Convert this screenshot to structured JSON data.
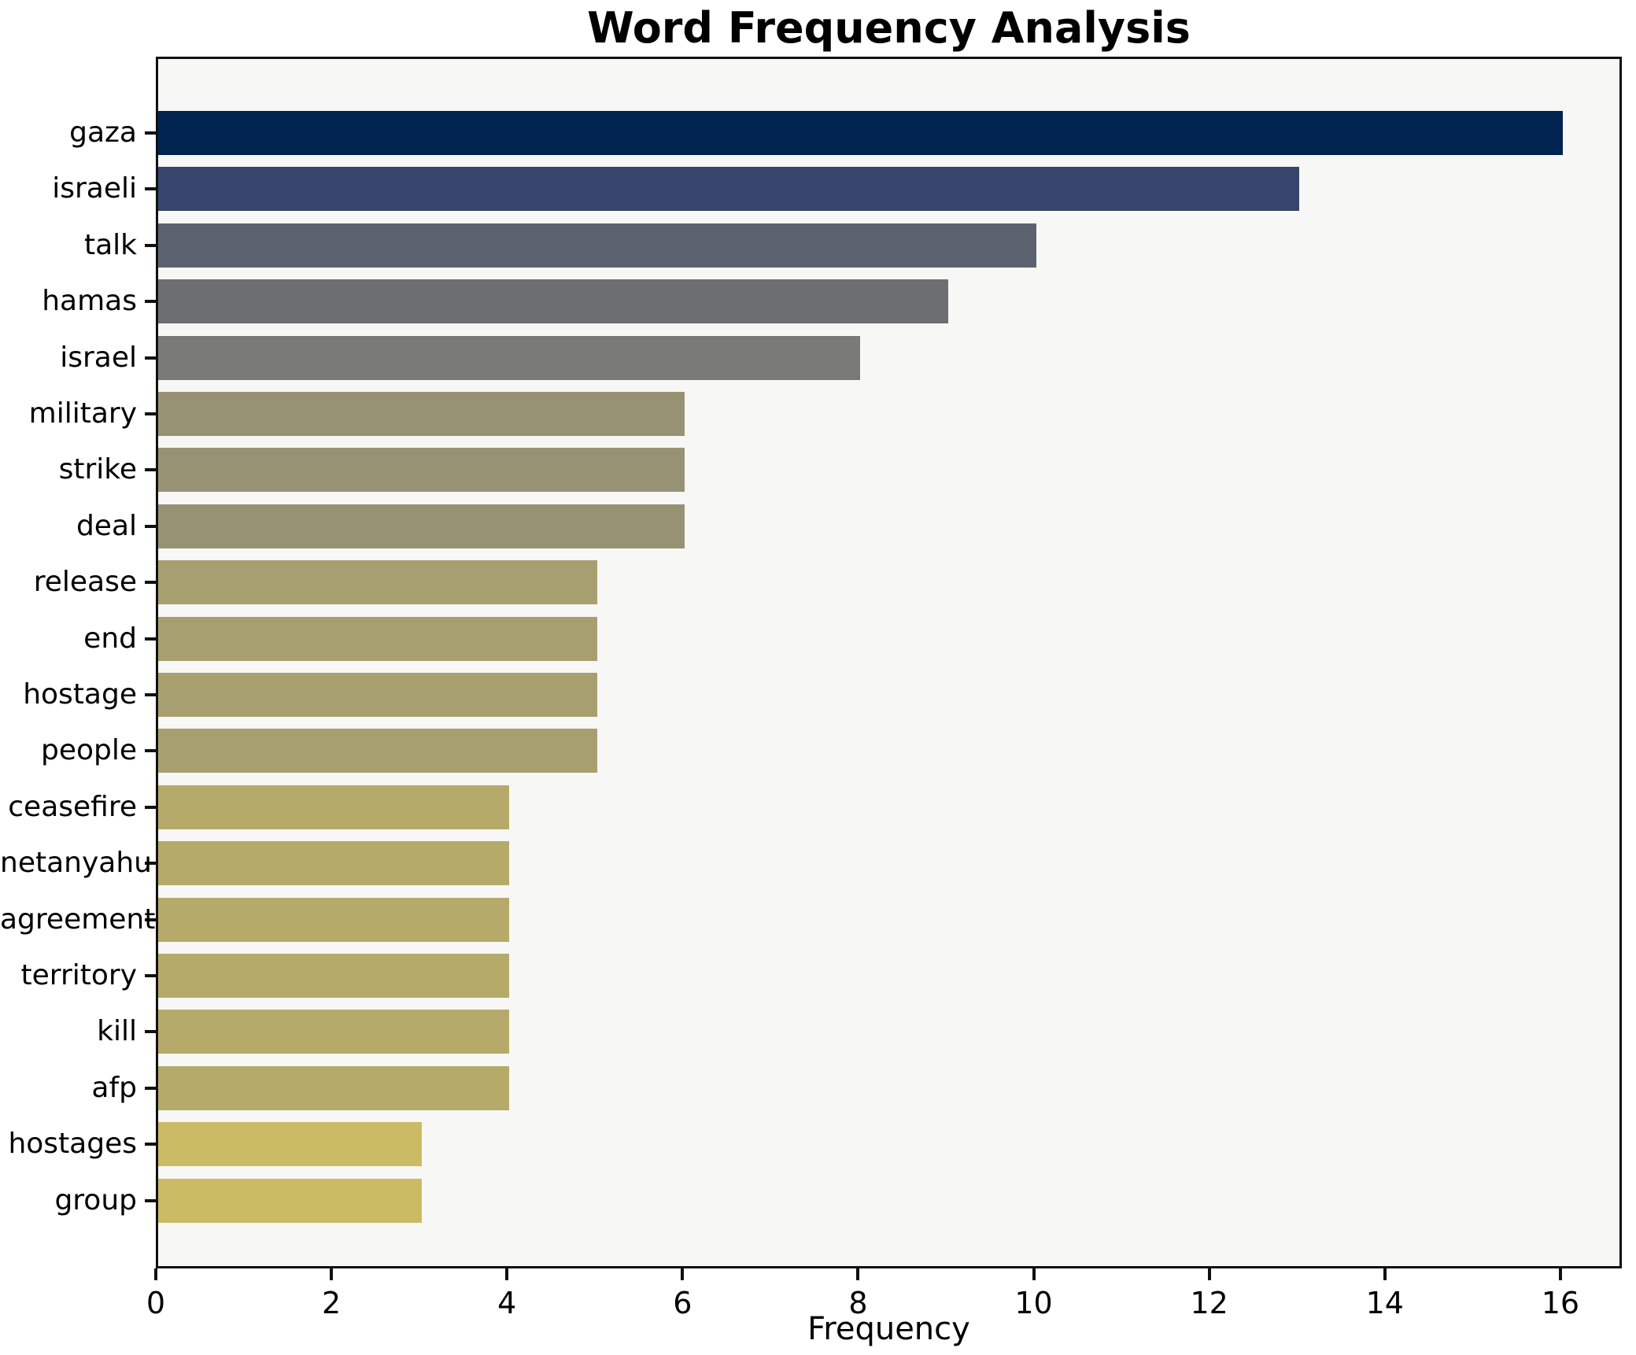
{
  "title": "Word Frequency Analysis",
  "xlabel": "Frequency",
  "chart_data": {
    "type": "bar",
    "orientation": "horizontal",
    "title": "Word Frequency Analysis",
    "xlabel": "Frequency",
    "ylabel": "",
    "categories": [
      "gaza",
      "israeli",
      "talk",
      "hamas",
      "israel",
      "military",
      "strike",
      "deal",
      "release",
      "end",
      "hostage",
      "people",
      "ceasefire",
      "netanyahu",
      "agreement",
      "territory",
      "kill",
      "afp",
      "hostages",
      "group"
    ],
    "values": [
      16,
      13,
      10,
      9,
      8,
      6,
      6,
      6,
      5,
      5,
      5,
      5,
      4,
      4,
      4,
      4,
      4,
      4,
      3,
      3
    ],
    "bar_colors": [
      "#00234f",
      "#36456c",
      "#5d6270",
      "#6c6e72",
      "#7a7b78",
      "#989274",
      "#989274",
      "#989274",
      "#a89f71",
      "#a89f71",
      "#a89f71",
      "#a89f71",
      "#b5aa6a",
      "#b5aa6a",
      "#b5aa6a",
      "#b5aa6a",
      "#b5aa6a",
      "#b5aa6a",
      "#cabb64",
      "#cabb64"
    ],
    "xlim": [
      0,
      16.7
    ],
    "xticks": [
      0,
      2,
      4,
      6,
      8,
      10,
      12,
      14,
      16
    ],
    "grid": false,
    "legend": null,
    "colormap": "cividis",
    "plot_bg": "#f7f7f5",
    "fig_bg": "#ffffff",
    "spine_color": "#111111",
    "text_color": "#000000"
  }
}
